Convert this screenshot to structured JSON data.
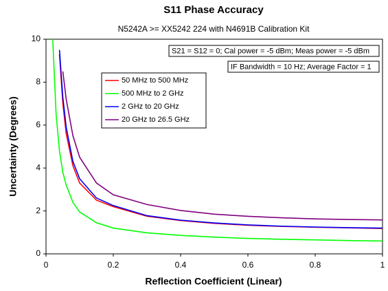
{
  "chart_data": {
    "type": "line",
    "title": "S11 Phase Accuracy",
    "subtitle": "N5242A >= XX5242 224 with N4691B Calibration Kit",
    "annotations": [
      "S21 = S12 = 0; Cal power = -5 dBm; Meas power = -5 dBm",
      "IF Bandwidth = 10 Hz; Average Factor = 1"
    ],
    "x_label": "Reflection Coefficient (Linear)",
    "y_label": "Uncertainty (Degrees)",
    "x": [
      0.02,
      0.03,
      0.04,
      0.05,
      0.06,
      0.08,
      0.1,
      0.15,
      0.2,
      0.3,
      0.4,
      0.5,
      0.6,
      0.7,
      0.8,
      0.9,
      1
    ],
    "series": [
      {
        "name": "50 MHz to 500 MHz",
        "color": "#ff0000",
        "values": [
          null,
          null,
          9.3,
          7.0,
          5.6,
          4.1,
          3.3,
          2.5,
          2.2,
          1.75,
          1.55,
          1.42,
          1.33,
          1.28,
          1.24,
          1.21,
          1.18
        ]
      },
      {
        "name": "500 MHz to 2 GHz",
        "color": "#00ff00",
        "values": [
          10,
          6.5,
          4.8,
          3.8,
          3.2,
          2.4,
          1.95,
          1.45,
          1.2,
          0.98,
          0.86,
          0.78,
          0.72,
          0.68,
          0.65,
          0.62,
          0.6
        ]
      },
      {
        "name": "2 GHz to 20 GHz",
        "color": "#0000ff",
        "values": [
          null,
          null,
          9.5,
          7.3,
          5.9,
          4.3,
          3.5,
          2.6,
          2.25,
          1.78,
          1.57,
          1.44,
          1.35,
          1.29,
          1.25,
          1.22,
          1.2
        ]
      },
      {
        "name": "20 GHz to 26.5 GHz",
        "color": "#800080",
        "values": [
          null,
          null,
          null,
          8.5,
          7.2,
          5.5,
          4.5,
          3.3,
          2.75,
          2.3,
          2.02,
          1.85,
          1.75,
          1.68,
          1.63,
          1.6,
          1.58
        ]
      }
    ],
    "xlim": [
      0,
      1
    ],
    "xticks": [
      0,
      0.2,
      0.4,
      0.6,
      0.8,
      1
    ],
    "ylim": [
      0,
      10
    ],
    "yticks": [
      0,
      2,
      4,
      6,
      8,
      10
    ],
    "grid": false
  }
}
